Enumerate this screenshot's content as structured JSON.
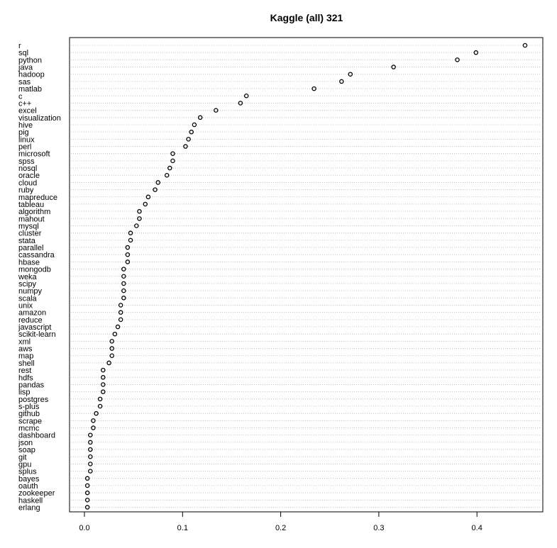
{
  "chart_data": {
    "type": "scatter",
    "title": "Kaggle (all) 321",
    "xlabel": "",
    "ylabel": "",
    "xlim": [
      -0.015,
      0.462
    ],
    "xticks": [
      "0.0",
      "0.1",
      "0.2",
      "0.3",
      "0.4"
    ],
    "xtick_values": [
      0.0,
      0.1,
      0.2,
      0.3,
      0.4
    ],
    "grid": "dotted horizontal lines per category",
    "categories": [
      "r",
      "sql",
      "python",
      "java",
      "hadoop",
      "sas",
      "matlab",
      "c",
      "c++",
      "excel",
      "visualization",
      "hive",
      "pig",
      "linux",
      "perl",
      "microsoft",
      "spss",
      "nosql",
      "oracle",
      "cloud",
      "ruby",
      "mapreduce",
      "tableau",
      "algorithm",
      "mahout",
      "mysql",
      "cluster",
      "stata",
      "parallel",
      "cassandra",
      "hbase",
      "mongodb",
      "weka",
      "scipy",
      "numpy",
      "scala",
      "unix",
      "amazon",
      "reduce",
      "javascript",
      "scikit-learn",
      "xml",
      "aws",
      "map",
      "shell",
      "rest",
      "hdfs",
      "pandas",
      "lisp",
      "postgres",
      "s-plus",
      "github",
      "scrape",
      "mcmc",
      "dashboard",
      "json",
      "soap",
      "git",
      "gpu",
      "splus",
      "bayes",
      "oauth",
      "zookeeper",
      "haskell",
      "erlang"
    ],
    "values": [
      0.449,
      0.399,
      0.38,
      0.315,
      0.271,
      0.262,
      0.234,
      0.165,
      0.159,
      0.134,
      0.118,
      0.112,
      0.109,
      0.106,
      0.103,
      0.09,
      0.09,
      0.087,
      0.084,
      0.075,
      0.072,
      0.065,
      0.062,
      0.056,
      0.056,
      0.053,
      0.047,
      0.047,
      0.044,
      0.044,
      0.044,
      0.04,
      0.04,
      0.04,
      0.04,
      0.04,
      0.037,
      0.037,
      0.037,
      0.034,
      0.031,
      0.028,
      0.028,
      0.028,
      0.025,
      0.019,
      0.019,
      0.019,
      0.019,
      0.016,
      0.016,
      0.012,
      0.009,
      0.009,
      0.006,
      0.006,
      0.006,
      0.006,
      0.006,
      0.006,
      0.003,
      0.003,
      0.003,
      0.003,
      0.003
    ]
  }
}
